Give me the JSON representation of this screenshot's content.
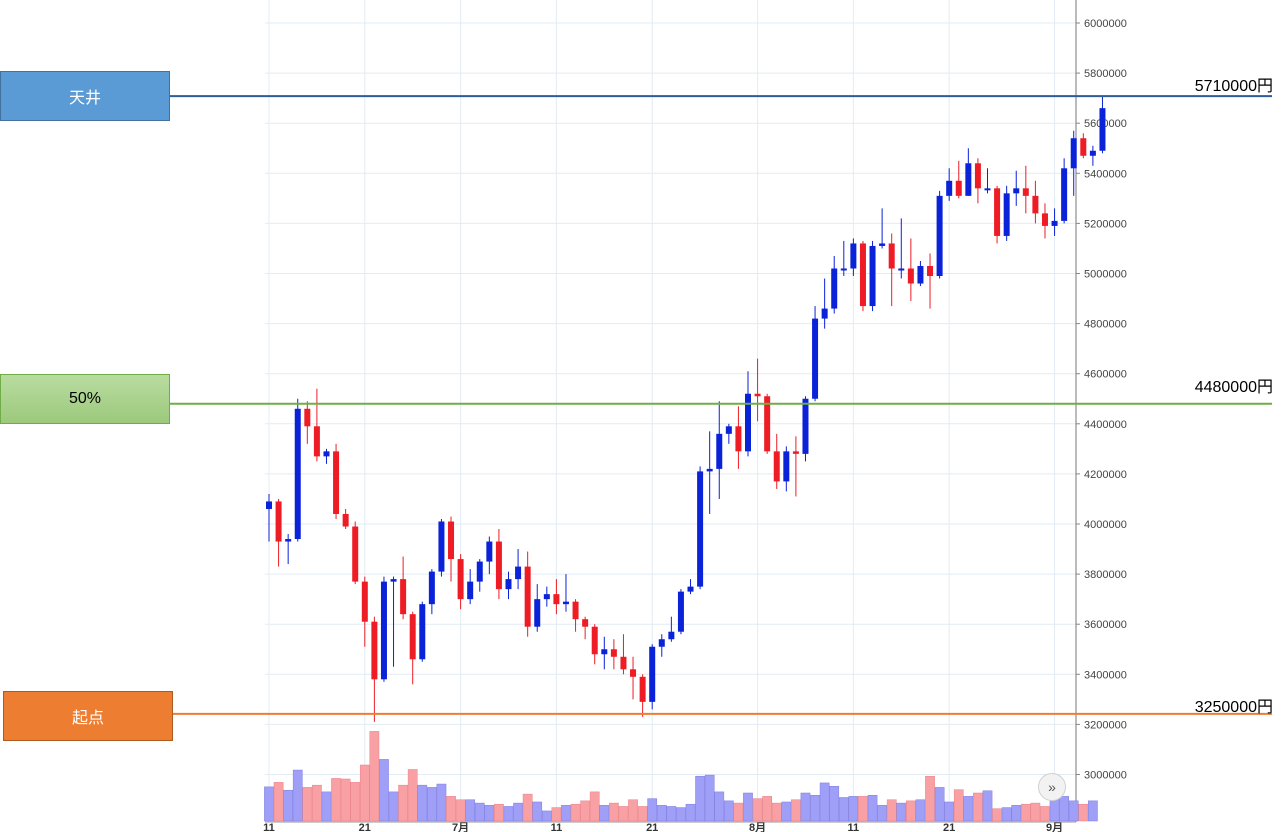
{
  "levels": {
    "top": {
      "label": "天井",
      "price": 5710000,
      "price_label": "5710000円",
      "color": "#2e5b9a"
    },
    "mid": {
      "label": "50%",
      "price": 4480000,
      "price_label": "4480000円",
      "color": "#70ad47"
    },
    "base": {
      "label": "起点",
      "price": 3250000,
      "price_label": "3250000円",
      "color": "#ed7d31"
    }
  },
  "scroll_button": {
    "label": "»",
    "icon": "double-chevron-right-icon"
  },
  "colors": {
    "up": "#0a22d8",
    "down": "#ee1c25",
    "vol_up": "#9f9ff8",
    "vol_down": "#f9a0a4",
    "grid": "#e2ecf5"
  },
  "chart_data": {
    "type": "candlestick",
    "y_axis": {
      "ticks": [
        3000000,
        3200000,
        3400000,
        3600000,
        3800000,
        4000000,
        4200000,
        4400000,
        4600000,
        4800000,
        5000000,
        5200000,
        5400000,
        5600000,
        5800000,
        6000000
      ]
    },
    "x_axis": {
      "labels": [
        {
          "index": 0,
          "label": "11"
        },
        {
          "index": 10,
          "label": "21"
        },
        {
          "index": 20,
          "label": "7月"
        },
        {
          "index": 30,
          "label": "11"
        },
        {
          "index": 40,
          "label": "21"
        },
        {
          "index": 51,
          "label": "8月"
        },
        {
          "index": 61,
          "label": "11"
        },
        {
          "index": 71,
          "label": "21"
        },
        {
          "index": 82,
          "label": "9月"
        }
      ]
    },
    "candles": [
      [
        4060000,
        4090000,
        3930000,
        4120000
      ],
      [
        4090000,
        3930000,
        3830000,
        4100000
      ],
      [
        3930000,
        3940000,
        3840000,
        3960000
      ],
      [
        3940000,
        4460000,
        3930000,
        4500000
      ],
      [
        4460000,
        4390000,
        4320000,
        4490000
      ],
      [
        4390000,
        4270000,
        4250000,
        4540000
      ],
      [
        4270000,
        4290000,
        4240000,
        4300000
      ],
      [
        4290000,
        4040000,
        4020000,
        4320000
      ],
      [
        4040000,
        3990000,
        3980000,
        4060000
      ],
      [
        3990000,
        3770000,
        3760000,
        4010000
      ],
      [
        3770000,
        3610000,
        3510000,
        3790000
      ],
      [
        3610000,
        3380000,
        3210000,
        3630000
      ],
      [
        3380000,
        3770000,
        3370000,
        3790000
      ],
      [
        3770000,
        3780000,
        3430000,
        3790000
      ],
      [
        3780000,
        3640000,
        3620000,
        3870000
      ],
      [
        3640000,
        3460000,
        3360000,
        3650000
      ],
      [
        3460000,
        3680000,
        3450000,
        3690000
      ],
      [
        3680000,
        3810000,
        3640000,
        3820000
      ],
      [
        3810000,
        4010000,
        3790000,
        4020000
      ],
      [
        4010000,
        3860000,
        3770000,
        4030000
      ],
      [
        3860000,
        3700000,
        3660000,
        3880000
      ],
      [
        3700000,
        3770000,
        3680000,
        3820000
      ],
      [
        3770000,
        3850000,
        3730000,
        3860000
      ],
      [
        3850000,
        3930000,
        3800000,
        3950000
      ],
      [
        3930000,
        3740000,
        3700000,
        3980000
      ],
      [
        3740000,
        3780000,
        3700000,
        3810000
      ],
      [
        3780000,
        3830000,
        3740000,
        3900000
      ],
      [
        3830000,
        3590000,
        3550000,
        3890000
      ],
      [
        3590000,
        3700000,
        3570000,
        3760000
      ],
      [
        3700000,
        3720000,
        3670000,
        3750000
      ],
      [
        3720000,
        3680000,
        3640000,
        3780000
      ],
      [
        3680000,
        3690000,
        3650000,
        3800000
      ],
      [
        3690000,
        3620000,
        3570000,
        3700000
      ],
      [
        3620000,
        3590000,
        3540000,
        3630000
      ],
      [
        3590000,
        3480000,
        3440000,
        3600000
      ],
      [
        3480000,
        3500000,
        3420000,
        3550000
      ],
      [
        3500000,
        3470000,
        3420000,
        3540000
      ],
      [
        3470000,
        3420000,
        3400000,
        3560000
      ],
      [
        3420000,
        3390000,
        3300000,
        3470000
      ],
      [
        3390000,
        3290000,
        3230000,
        3400000
      ],
      [
        3290000,
        3510000,
        3260000,
        3520000
      ],
      [
        3510000,
        3540000,
        3470000,
        3560000
      ],
      [
        3540000,
        3570000,
        3530000,
        3630000
      ],
      [
        3570000,
        3730000,
        3560000,
        3740000
      ],
      [
        3730000,
        3750000,
        3720000,
        3780000
      ],
      [
        3750000,
        4210000,
        3740000,
        4230000
      ],
      [
        4210000,
        4220000,
        4040000,
        4370000
      ],
      [
        4220000,
        4360000,
        4100000,
        4490000
      ],
      [
        4360000,
        4390000,
        4320000,
        4400000
      ],
      [
        4390000,
        4290000,
        4220000,
        4470000
      ],
      [
        4290000,
        4520000,
        4270000,
        4610000
      ],
      [
        4520000,
        4510000,
        4410000,
        4660000
      ],
      [
        4510000,
        4290000,
        4280000,
        4520000
      ],
      [
        4290000,
        4170000,
        4140000,
        4360000
      ],
      [
        4170000,
        4290000,
        4130000,
        4310000
      ],
      [
        4290000,
        4280000,
        4110000,
        4350000
      ],
      [
        4280000,
        4500000,
        4250000,
        4510000
      ],
      [
        4500000,
        4820000,
        4490000,
        4870000
      ],
      [
        4820000,
        4860000,
        4780000,
        4980000
      ],
      [
        4860000,
        5020000,
        4840000,
        5070000
      ],
      [
        5020000,
        5020000,
        4990000,
        5130000
      ],
      [
        5020000,
        5120000,
        4990000,
        5140000
      ],
      [
        5120000,
        4870000,
        4850000,
        5130000
      ],
      [
        4870000,
        5110000,
        4850000,
        5130000
      ],
      [
        5110000,
        5120000,
        5100000,
        5260000
      ],
      [
        5120000,
        5020000,
        4870000,
        5160000
      ],
      [
        5020000,
        5020000,
        4980000,
        5220000
      ],
      [
        5020000,
        4960000,
        4890000,
        5140000
      ],
      [
        4960000,
        5030000,
        4950000,
        5050000
      ],
      [
        5030000,
        4990000,
        4860000,
        5080000
      ],
      [
        4990000,
        5310000,
        4980000,
        5330000
      ],
      [
        5310000,
        5370000,
        5290000,
        5420000
      ],
      [
        5370000,
        5310000,
        5300000,
        5450000
      ],
      [
        5310000,
        5440000,
        5310000,
        5500000
      ],
      [
        5440000,
        5340000,
        5280000,
        5460000
      ],
      [
        5340000,
        5340000,
        5320000,
        5420000
      ],
      [
        5340000,
        5150000,
        5120000,
        5350000
      ],
      [
        5150000,
        5320000,
        5130000,
        5350000
      ],
      [
        5320000,
        5340000,
        5270000,
        5410000
      ],
      [
        5340000,
        5310000,
        5240000,
        5430000
      ],
      [
        5310000,
        5240000,
        5200000,
        5370000
      ],
      [
        5240000,
        5190000,
        5140000,
        5280000
      ],
      [
        5190000,
        5210000,
        5150000,
        5260000
      ],
      [
        5210000,
        5420000,
        5200000,
        5460000
      ],
      [
        5420000,
        5540000,
        5310000,
        5570000
      ],
      [
        5540000,
        5470000,
        5460000,
        5560000
      ],
      [
        5470000,
        5490000,
        5430000,
        5510000
      ],
      [
        5490000,
        5660000,
        5480000,
        5710000
      ]
    ],
    "volume": [
      3.05,
      3.45,
      2.75,
      4.55,
      3.0,
      3.2,
      2.6,
      3.8,
      3.75,
      3.45,
      5.0,
      8.0,
      5.5,
      2.6,
      3.2,
      4.6,
      3.2,
      3.0,
      3.3,
      2.2,
      1.9,
      1.9,
      1.6,
      1.4,
      1.5,
      1.3,
      1.6,
      2.4,
      1.7,
      0.9,
      1.2,
      1.4,
      1.5,
      1.8,
      2.6,
      1.4,
      1.6,
      1.3,
      1.9,
      1.3,
      2.0,
      1.4,
      1.3,
      1.2,
      1.5,
      4.0,
      4.1,
      2.6,
      1.8,
      1.6,
      2.5,
      2.0,
      2.2,
      1.6,
      1.7,
      1.9,
      2.5,
      2.3,
      3.4,
      3.1,
      2.1,
      2.2,
      2.2,
      2.3,
      1.4,
      1.9,
      1.6,
      1.8,
      1.9,
      4.0,
      3.0,
      1.7,
      2.8,
      2.2,
      2.5,
      2.7,
      1.1,
      1.2,
      1.4,
      1.5,
      1.6,
      1.3,
      2.1,
      2.2,
      1.8,
      1.5,
      1.8
    ]
  }
}
